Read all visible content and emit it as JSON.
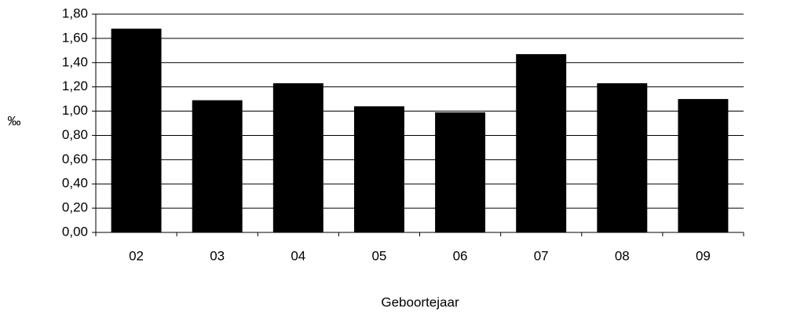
{
  "chart_data": {
    "type": "bar",
    "y_label": "‰",
    "x_label": "Geboortejaar",
    "categories": [
      "02",
      "03",
      "04",
      "05",
      "06",
      "07",
      "08",
      "09"
    ],
    "values": [
      1.68,
      1.09,
      1.23,
      1.04,
      0.99,
      1.47,
      1.23,
      1.1
    ],
    "color": "#000000",
    "ylim": [
      0,
      1.8
    ],
    "yticks": [
      {
        "value": 0,
        "label": "0,00"
      },
      {
        "value": 0.2,
        "label": "0,20"
      },
      {
        "value": 0.4,
        "label": "0,40"
      },
      {
        "value": 0.6,
        "label": "0,60"
      },
      {
        "value": 0.8,
        "label": "0,80"
      },
      {
        "value": 1.0,
        "label": "1,00"
      },
      {
        "value": 1.2,
        "label": "1,20"
      },
      {
        "value": 1.4,
        "label": "1,40"
      },
      {
        "value": 1.6,
        "label": "1,60"
      },
      {
        "value": 1.8,
        "label": "1,80"
      }
    ],
    "grid": true
  }
}
